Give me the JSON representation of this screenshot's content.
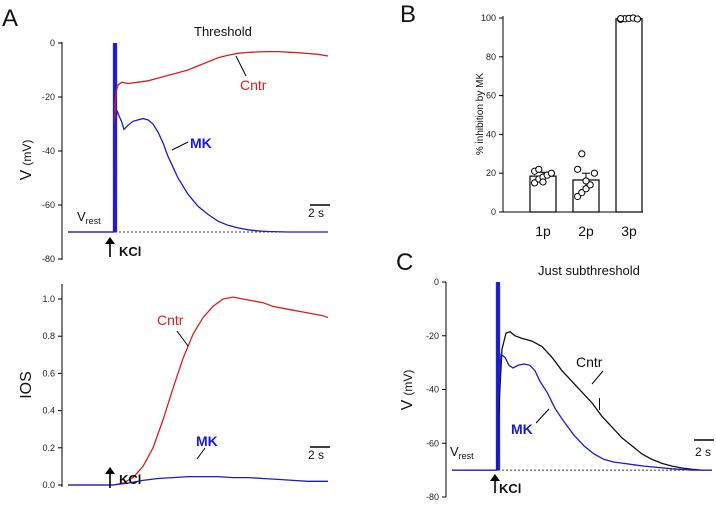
{
  "panels": {
    "a": "A",
    "b": "B",
    "c": "C"
  },
  "colors": {
    "cntr": "#d42020",
    "mk": "#1a1ad0",
    "black": "#111111",
    "axis": "#000000"
  },
  "chart_data": [
    {
      "id": "A-top",
      "type": "line",
      "title": "Threshold",
      "xlabel": "",
      "ylabel_main": "V",
      "ylabel_unit": "(mV)",
      "ylim": [
        -80,
        0
      ],
      "yticks": [
        0,
        -20,
        -40,
        -60,
        -80
      ],
      "ytick_labels": [
        "0",
        "-20",
        "-40",
        "-60",
        "-80"
      ],
      "xlim": [
        0,
        26
      ],
      "baseline": -70,
      "vrest_main": "V",
      "vrest_sub": "rest",
      "stim_label": "KCl",
      "stim_time": 4.7,
      "scalebar_label": "2 s",
      "scalebar_seconds": 2,
      "series": [
        {
          "name": "Cntr",
          "color": "#d42020",
          "x": [
            0,
            4.6,
            4.72,
            4.82,
            5.0,
            5.4,
            6.0,
            7,
            8,
            9,
            10,
            11,
            12,
            13,
            14,
            15,
            16,
            17,
            18,
            19,
            20,
            21,
            22,
            23,
            24,
            25,
            26
          ],
          "y": [
            -70,
            -70,
            -22,
            -18,
            -15.5,
            -14.5,
            -15,
            -14.5,
            -14,
            -13,
            -12,
            -11,
            -10,
            -8.5,
            -7,
            -5.5,
            -4.5,
            -3.8,
            -3.5,
            -3.3,
            -3.2,
            -3.2,
            -3.4,
            -3.6,
            -3.9,
            -4.2,
            -4.8
          ]
        },
        {
          "name": "MK",
          "color": "#1a1ad0",
          "x": [
            0,
            4.6,
            4.72,
            4.9,
            5.1,
            5.35,
            5.6,
            6.0,
            6.5,
            7.0,
            7.5,
            8.0,
            8.5,
            9.0,
            9.5,
            10,
            10.5,
            11,
            12,
            13,
            14,
            15,
            16,
            17,
            18,
            19,
            20,
            22,
            24,
            26
          ],
          "y": [
            -70,
            -70,
            -30,
            -25,
            -27,
            -29,
            -32,
            -30.5,
            -29,
            -28.5,
            -28,
            -28.5,
            -30,
            -33,
            -37,
            -42,
            -46,
            -50,
            -56,
            -60.5,
            -63.5,
            -66,
            -67.5,
            -68.5,
            -69.2,
            -69.6,
            -69.8,
            -70,
            -70,
            -70
          ]
        }
      ],
      "labels": [
        "Cntr",
        "MK"
      ]
    },
    {
      "id": "A-bottom",
      "type": "line",
      "ylabel_main": "IOS",
      "ylim": [
        -0.03,
        1.1
      ],
      "yticks": [
        0.0,
        0.2,
        0.4,
        0.6,
        0.8,
        1.0
      ],
      "ytick_labels": [
        "0.0",
        "0.2",
        "0.4",
        "0.6",
        "0.8",
        "1.0"
      ],
      "xlim": [
        0,
        26
      ],
      "stim_label": "KCl",
      "stim_time": 4.7,
      "scalebar_label": "2 s",
      "scalebar_seconds": 2,
      "series": [
        {
          "name": "Cntr",
          "color": "#d42020",
          "x": [
            0,
            4.5,
            5.5,
            6.5,
            7.5,
            8.5,
            9.5,
            10.5,
            11.5,
            12.5,
            13.5,
            14.5,
            15.5,
            16.5,
            17.5,
            18.5,
            19.5,
            20.5,
            21.5,
            22.5,
            23.5,
            24.5,
            25.5,
            26
          ],
          "y": [
            0,
            0,
            0.01,
            0.04,
            0.1,
            0.2,
            0.35,
            0.52,
            0.68,
            0.81,
            0.9,
            0.96,
            1.0,
            1.01,
            1.0,
            0.99,
            0.98,
            0.96,
            0.95,
            0.94,
            0.93,
            0.92,
            0.91,
            0.9
          ]
        },
        {
          "name": "MK",
          "color": "#1a1ad0",
          "x": [
            0,
            4.5,
            6,
            7.5,
            9,
            10.5,
            12,
            13.5,
            15,
            16.5,
            18,
            19.5,
            21,
            22.5,
            24,
            26
          ],
          "y": [
            0,
            0,
            0.01,
            0.025,
            0.035,
            0.04,
            0.045,
            0.045,
            0.045,
            0.04,
            0.04,
            0.035,
            0.03,
            0.025,
            0.02,
            0.02
          ]
        }
      ],
      "labels": [
        "Cntr",
        "MK"
      ]
    },
    {
      "id": "B",
      "type": "bar",
      "ylabel": "% inhibition by MK",
      "ylim": [
        0,
        100
      ],
      "yticks": [
        0,
        20,
        40,
        60,
        80,
        100
      ],
      "ytick_labels": [
        "0",
        "20",
        "40",
        "60",
        "80",
        "100"
      ],
      "categories": [
        "1p",
        "2p",
        "3p"
      ],
      "values": [
        18.5,
        16.5,
        99.6
      ],
      "errors": [
        2,
        3.5,
        0.4
      ],
      "points": [
        [
          15,
          17,
          18,
          19,
          20,
          21,
          22,
          15.5
        ],
        [
          8,
          10,
          12,
          14,
          20,
          22,
          30,
          16
        ],
        [
          99.3,
          99.6,
          99.8,
          100,
          99.5,
          99.7
        ]
      ]
    },
    {
      "id": "C",
      "type": "line",
      "title": "Just subthreshold",
      "ylabel_main": "V",
      "ylabel_unit": "(mV)",
      "ylim": [
        -80,
        0
      ],
      "yticks": [
        0,
        -20,
        -40,
        -60,
        -80
      ],
      "ytick_labels": [
        "0",
        "-20",
        "-40",
        "-60",
        "-80"
      ],
      "xlim": [
        0,
        26
      ],
      "baseline": -70,
      "vrest_main": "V",
      "vrest_sub": "rest",
      "stim_label": "KCl",
      "stim_time": 4.6,
      "scalebar_label": "2 s",
      "scalebar_seconds": 2,
      "series": [
        {
          "name": "Cntr",
          "color": "#111111",
          "x": [
            0,
            4.5,
            4.65,
            5.0,
            5.4,
            5.8,
            6.3,
            7,
            8,
            9,
            10,
            11,
            12,
            13,
            14,
            15,
            16,
            17,
            18,
            19,
            20,
            21,
            22,
            23,
            24,
            25,
            26
          ],
          "y": [
            -70,
            -70,
            -50,
            -25,
            -19,
            -18.5,
            -20,
            -21,
            -22,
            -24,
            -28,
            -33,
            -37,
            -41,
            -45,
            -50,
            -54,
            -58,
            -61,
            -64,
            -66,
            -67.5,
            -68.5,
            -69.2,
            -69.7,
            -70,
            -70
          ]
        },
        {
          "name": "MK",
          "color": "#1a1ad0",
          "x": [
            0,
            4.5,
            4.62,
            4.9,
            5.3,
            5.7,
            6.1,
            6.6,
            7.2,
            7.8,
            8.3,
            8.8,
            9.5,
            10.3,
            11.2,
            12.2,
            13.2,
            14.2,
            15.2,
            16.2,
            17.2,
            18.2,
            19.2,
            20.5,
            22,
            24,
            26
          ],
          "y": [
            -70,
            -70,
            -45,
            -27,
            -28,
            -31,
            -32,
            -31,
            -30.5,
            -31,
            -33,
            -37,
            -41,
            -47,
            -52,
            -57,
            -61,
            -64,
            -66,
            -67,
            -67.5,
            -68,
            -68.5,
            -69,
            -69.5,
            -70,
            -70
          ]
        }
      ],
      "labels": [
        "Cntr",
        "MK"
      ]
    }
  ]
}
